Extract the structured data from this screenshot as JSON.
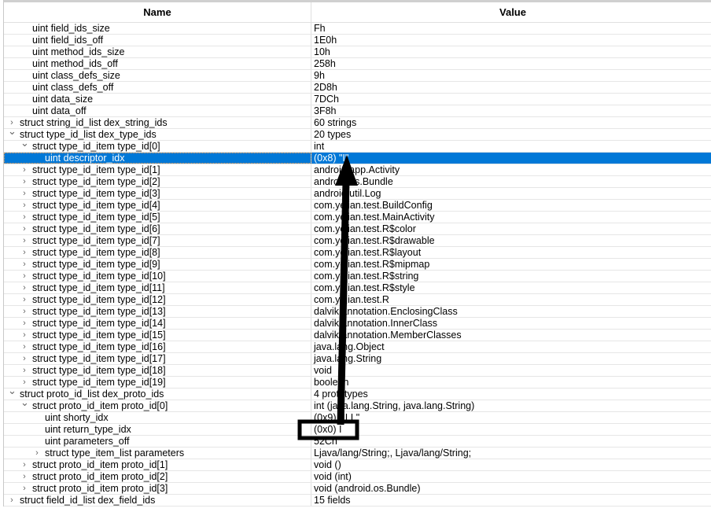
{
  "columns": {
    "name": "Name",
    "value": "Value"
  },
  "selected_index": 9,
  "rows": [
    {
      "name": "uint field_ids_size",
      "value": "Fh",
      "level": 2,
      "expander": "none"
    },
    {
      "name": "uint field_ids_off",
      "value": "1E0h",
      "level": 2,
      "expander": "none"
    },
    {
      "name": "uint method_ids_size",
      "value": "10h",
      "level": 2,
      "expander": "none"
    },
    {
      "name": "uint method_ids_off",
      "value": "258h",
      "level": 2,
      "expander": "none"
    },
    {
      "name": "uint class_defs_size",
      "value": "9h",
      "level": 2,
      "expander": "none"
    },
    {
      "name": "uint class_defs_off",
      "value": "2D8h",
      "level": 2,
      "expander": "none"
    },
    {
      "name": "uint data_size",
      "value": "7DCh",
      "level": 2,
      "expander": "none"
    },
    {
      "name": "uint data_off",
      "value": "3F8h",
      "level": 2,
      "expander": "none"
    },
    {
      "name": "struct string_id_list dex_string_ids",
      "value": "60 strings",
      "level": 1,
      "expander": "closed"
    },
    {
      "name": "struct type_id_list dex_type_ids",
      "value": "20 types",
      "level": 1,
      "expander": "open"
    },
    {
      "name": "struct type_id_item type_id[0]",
      "value": "int",
      "level": 2,
      "expander": "open"
    },
    {
      "name": "uint descriptor_idx",
      "value": "(0x8) \"I\"",
      "level": 3,
      "expander": "none"
    },
    {
      "name": "struct type_id_item type_id[1]",
      "value": "android.app.Activity",
      "level": 2,
      "expander": "closed"
    },
    {
      "name": "struct type_id_item type_id[2]",
      "value": "android.os.Bundle",
      "level": 2,
      "expander": "closed"
    },
    {
      "name": "struct type_id_item type_id[3]",
      "value": "android.util.Log",
      "level": 2,
      "expander": "closed"
    },
    {
      "name": "struct type_id_item type_id[4]",
      "value": "com.yejian.test.BuildConfig",
      "level": 2,
      "expander": "closed"
    },
    {
      "name": "struct type_id_item type_id[5]",
      "value": "com.yejian.test.MainActivity",
      "level": 2,
      "expander": "closed"
    },
    {
      "name": "struct type_id_item type_id[6]",
      "value": "com.yejian.test.R$color",
      "level": 2,
      "expander": "closed"
    },
    {
      "name": "struct type_id_item type_id[7]",
      "value": "com.yejian.test.R$drawable",
      "level": 2,
      "expander": "closed"
    },
    {
      "name": "struct type_id_item type_id[8]",
      "value": "com.yejian.test.R$layout",
      "level": 2,
      "expander": "closed"
    },
    {
      "name": "struct type_id_item type_id[9]",
      "value": "com.yejian.test.R$mipmap",
      "level": 2,
      "expander": "closed"
    },
    {
      "name": "struct type_id_item type_id[10]",
      "value": "com.yejian.test.R$string",
      "level": 2,
      "expander": "closed"
    },
    {
      "name": "struct type_id_item type_id[11]",
      "value": "com.yejian.test.R$style",
      "level": 2,
      "expander": "closed"
    },
    {
      "name": "struct type_id_item type_id[12]",
      "value": "com.yejian.test.R",
      "level": 2,
      "expander": "closed"
    },
    {
      "name": "struct type_id_item type_id[13]",
      "value": "dalvik.annotation.EnclosingClass",
      "level": 2,
      "expander": "closed"
    },
    {
      "name": "struct type_id_item type_id[14]",
      "value": "dalvik.annotation.InnerClass",
      "level": 2,
      "expander": "closed"
    },
    {
      "name": "struct type_id_item type_id[15]",
      "value": "dalvik.annotation.MemberClasses",
      "level": 2,
      "expander": "closed"
    },
    {
      "name": "struct type_id_item type_id[16]",
      "value": "java.lang.Object",
      "level": 2,
      "expander": "closed"
    },
    {
      "name": "struct type_id_item type_id[17]",
      "value": "java.lang.String",
      "level": 2,
      "expander": "closed"
    },
    {
      "name": "struct type_id_item type_id[18]",
      "value": "void",
      "level": 2,
      "expander": "closed"
    },
    {
      "name": "struct type_id_item type_id[19]",
      "value": "boolean",
      "level": 2,
      "expander": "closed"
    },
    {
      "name": "struct proto_id_list dex_proto_ids",
      "value": "4 prototypes",
      "level": 1,
      "expander": "open"
    },
    {
      "name": "struct proto_id_item proto_id[0]",
      "value": "int (java.lang.String, java.lang.String)",
      "level": 2,
      "expander": "open"
    },
    {
      "name": "uint shorty_idx",
      "value": "(0x9) \"ILL\"",
      "level": 3,
      "expander": "none"
    },
    {
      "name": "uint return_type_idx",
      "value": "(0x0) I",
      "level": 3,
      "expander": "none"
    },
    {
      "name": "uint parameters_off",
      "value": "52Ch",
      "level": 3,
      "expander": "none"
    },
    {
      "name": "struct type_item_list parameters",
      "value": "Ljava/lang/String;, Ljava/lang/String;",
      "level": 3,
      "expander": "closed"
    },
    {
      "name": "struct proto_id_item proto_id[1]",
      "value": "void ()",
      "level": 2,
      "expander": "closed"
    },
    {
      "name": "struct proto_id_item proto_id[2]",
      "value": "void (int)",
      "level": 2,
      "expander": "closed"
    },
    {
      "name": "struct proto_id_item proto_id[3]",
      "value": "void (android.os.Bundle)",
      "level": 2,
      "expander": "closed"
    },
    {
      "name": "struct field_id_list dex_field_ids",
      "value": "15 fields",
      "level": 1,
      "expander": "closed"
    }
  ],
  "colors": {
    "selection": "#0078d7",
    "annotation": "#000000"
  }
}
